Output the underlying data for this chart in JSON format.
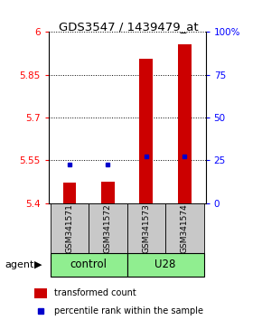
{
  "title": "GDS3547 / 1439479_at",
  "samples": [
    "GSM341571",
    "GSM341572",
    "GSM341573",
    "GSM341574"
  ],
  "red_values": [
    5.472,
    5.475,
    5.905,
    5.958
  ],
  "blue_values": [
    5.535,
    5.537,
    5.563,
    5.563
  ],
  "y_min": 5.4,
  "y_max": 6.0,
  "y_ticks": [
    5.4,
    5.55,
    5.7,
    5.85,
    6.0
  ],
  "y_tick_labels": [
    "5.4",
    "5.55",
    "5.7",
    "5.85",
    "6"
  ],
  "y_right_ticks": [
    0,
    25,
    50,
    75,
    100
  ],
  "y_right_labels": [
    "0",
    "25",
    "50",
    "75",
    "100%"
  ],
  "bar_width": 0.35,
  "bar_color": "#CC0000",
  "blue_color": "#0000CC",
  "sample_box_color": "#C8C8C8",
  "group_box_color": "#90EE90",
  "legend_red_label": "transformed count",
  "legend_blue_label": "percentile rank within the sample",
  "agent_label": "agent",
  "group_ranges": [
    [
      0,
      1
    ],
    [
      2,
      3
    ]
  ],
  "group_labels": [
    "control",
    "U28"
  ]
}
